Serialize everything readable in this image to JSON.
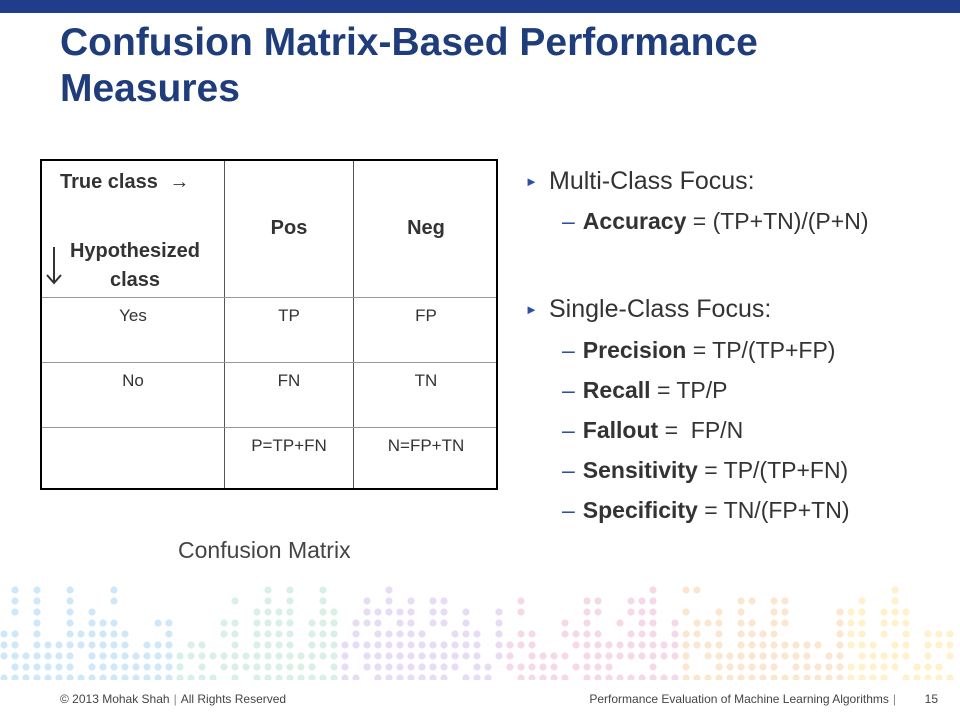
{
  "slide": {
    "title_line1": "Confusion Matrix-Based Performance",
    "title_line2": "Measures",
    "colors": {
      "title": "#1f3d7a",
      "topbar": "#1f3d8a",
      "bullet": "#2b4fa8"
    }
  },
  "matrix": {
    "corner_true": "True class",
    "corner_arrow": "→",
    "corner_hyp": "Hypothesized class",
    "col_headers": [
      "Pos",
      "Neg"
    ],
    "rows": [
      {
        "label": "Yes",
        "cells": [
          "TP",
          "FP"
        ]
      },
      {
        "label": "No",
        "cells": [
          "FN",
          "TN"
        ]
      },
      {
        "label": "",
        "cells": [
          "P=TP+FN",
          "N=FP+TN"
        ]
      }
    ],
    "caption": "Confusion Matrix"
  },
  "measures": {
    "multi_heading": "Multi-Class Focus:",
    "multi_items": [
      {
        "term": "Accuracy",
        "formula": " = (TP+TN)/(P+N)"
      }
    ],
    "single_heading": "Single-Class Focus:",
    "single_items": [
      {
        "term": "Precision",
        "formula": " = TP/(TP+FP)"
      },
      {
        "term": "Recall",
        "formula": " = TP/P"
      },
      {
        "term": "Fallout",
        "formula": " =  FP/N"
      },
      {
        "term": "Sensitivity",
        "formula": " = TP/(TP+FN)"
      },
      {
        "term": "Specificity",
        "formula": " = TN/(FP+TN)"
      }
    ]
  },
  "footer": {
    "copyright": "© 2013 Mohak Shah",
    "rights": "All Rights Reserved",
    "course": "Performance Evaluation of Machine Learning Algorithms",
    "page": "15"
  }
}
